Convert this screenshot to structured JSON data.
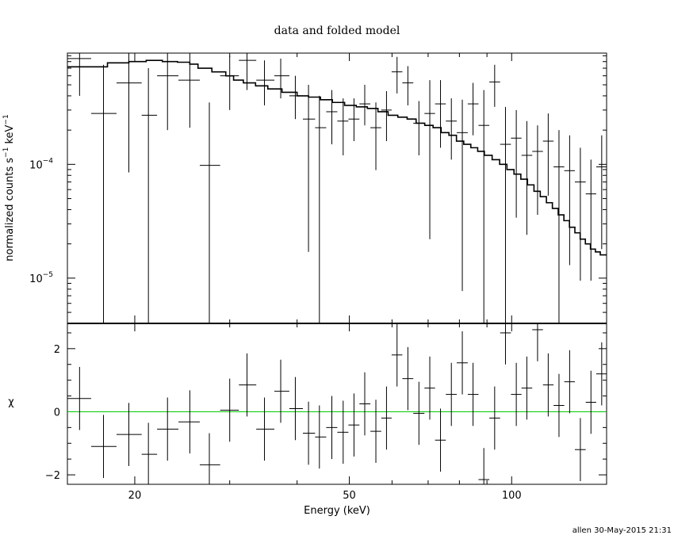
{
  "chart_data": [
    {
      "type": "line",
      "title": "data and folded model",
      "ylabel_main": "normalized counts s",
      "ylabel_sup1": "−1",
      "ylabel_unit": " keV",
      "ylabel_sup2": "−1",
      "yscale": "log",
      "xscale": "log",
      "xlim": [
        15,
        150
      ],
      "ylim": [
        4e-06,
        0.00095
      ],
      "y_ticks": [
        {
          "value": 0.0001,
          "base": "10",
          "exp": "−4"
        },
        {
          "value": 1e-05,
          "base": "10",
          "exp": "−5"
        }
      ],
      "data_points": [
        {
          "x": 15.8,
          "xerr": [
            15.0,
            16.6
          ],
          "y": 0.00085,
          "ylo": 0.0004,
          "yhi": 0.00095
        },
        {
          "x": 17.5,
          "xerr": [
            16.6,
            18.5
          ],
          "y": 0.00028,
          "ylo": 4e-06,
          "yhi": 0.00075
        },
        {
          "x": 19.5,
          "xerr": [
            18.5,
            20.6
          ],
          "y": 0.00052,
          "ylo": 8.5e-05,
          "yhi": 0.00095
        },
        {
          "x": 21.2,
          "xerr": [
            20.6,
            22.0
          ],
          "y": 0.00027,
          "ylo": 4e-06,
          "yhi": 0.0007
        },
        {
          "x": 23.0,
          "xerr": [
            22.0,
            24.1
          ],
          "y": 0.0006,
          "ylo": 0.0002,
          "yhi": 0.00095
        },
        {
          "x": 25.3,
          "xerr": [
            24.1,
            26.4
          ],
          "y": 0.00055,
          "ylo": 0.00021,
          "yhi": 0.00095
        },
        {
          "x": 27.5,
          "xerr": [
            26.4,
            28.8
          ],
          "y": 9.8e-05,
          "ylo": 4e-06,
          "yhi": 0.00035
        },
        {
          "x": 30.0,
          "xerr": [
            28.8,
            31.2
          ],
          "y": 0.0006,
          "ylo": 0.0003,
          "yhi": 0.0009
        },
        {
          "x": 32.3,
          "xerr": [
            31.2,
            33.6
          ],
          "y": 0.00082,
          "ylo": 0.00045,
          "yhi": 0.00095
        },
        {
          "x": 34.8,
          "xerr": [
            33.6,
            36.3
          ],
          "y": 0.00055,
          "ylo": 0.00033,
          "yhi": 0.00082
        },
        {
          "x": 37.3,
          "xerr": [
            36.3,
            38.7
          ],
          "y": 0.0006,
          "ylo": 0.00038,
          "yhi": 0.00085
        },
        {
          "x": 39.7,
          "xerr": [
            38.7,
            41.0
          ],
          "y": 0.0004,
          "ylo": 0.00025,
          "yhi": 0.0006
        },
        {
          "x": 42.0,
          "xerr": [
            41.0,
            43.2
          ],
          "y": 0.00025,
          "ylo": 1.7e-05,
          "yhi": 0.0005
        },
        {
          "x": 44.0,
          "xerr": [
            43.2,
            45.3
          ],
          "y": 0.00021,
          "ylo": 4e-06,
          "yhi": 0.0004
        },
        {
          "x": 46.4,
          "xerr": [
            45.3,
            47.5
          ],
          "y": 0.00029,
          "ylo": 0.00015,
          "yhi": 0.00045
        },
        {
          "x": 48.7,
          "xerr": [
            47.5,
            49.8
          ],
          "y": 0.00024,
          "ylo": 0.00012,
          "yhi": 0.00038
        },
        {
          "x": 51.0,
          "xerr": [
            49.8,
            52.2
          ],
          "y": 0.00025,
          "ylo": 0.00016,
          "yhi": 0.00038
        },
        {
          "x": 53.4,
          "xerr": [
            52.2,
            54.7
          ],
          "y": 0.00034,
          "ylo": 0.00022,
          "yhi": 0.0005
        },
        {
          "x": 56.0,
          "xerr": [
            54.7,
            57.3
          ],
          "y": 0.00021,
          "ylo": 8.9e-05,
          "yhi": 0.00035
        },
        {
          "x": 58.6,
          "xerr": [
            57.3,
            59.9
          ],
          "y": 0.0003,
          "ylo": 0.00016,
          "yhi": 0.00044
        },
        {
          "x": 61.3,
          "xerr": [
            59.9,
            62.7
          ],
          "y": 0.00065,
          "ylo": 0.00042,
          "yhi": 0.00088
        },
        {
          "x": 64.2,
          "xerr": [
            62.7,
            65.7
          ],
          "y": 0.00052,
          "ylo": 0.00033,
          "yhi": 0.00073
        },
        {
          "x": 67.3,
          "xerr": [
            65.7,
            68.9
          ],
          "y": 0.00023,
          "ylo": 0.00012,
          "yhi": 0.00036
        },
        {
          "x": 70.5,
          "xerr": [
            68.9,
            72.1
          ],
          "y": 0.00028,
          "ylo": 2.2e-05,
          "yhi": 0.00055
        },
        {
          "x": 73.8,
          "xerr": [
            72.1,
            75.5
          ],
          "y": 0.00034,
          "ylo": 0.00014,
          "yhi": 0.00055
        },
        {
          "x": 77.3,
          "xerr": [
            75.5,
            79.1
          ],
          "y": 0.00024,
          "ylo": 0.00011,
          "yhi": 0.00038
        },
        {
          "x": 81.0,
          "xerr": [
            79.1,
            82.9
          ],
          "y": 0.00019,
          "ylo": 7.7e-06,
          "yhi": 0.00037
        },
        {
          "x": 84.8,
          "xerr": [
            82.9,
            86.8
          ],
          "y": 0.00034,
          "ylo": 0.00018,
          "yhi": 0.00052
        },
        {
          "x": 88.8,
          "xerr": [
            86.8,
            90.9
          ],
          "y": 0.00022,
          "ylo": 4e-06,
          "yhi": 0.00045
        },
        {
          "x": 93.0,
          "xerr": [
            90.9,
            95.2
          ],
          "y": 0.00053,
          "ylo": 0.00032,
          "yhi": 0.00075
        },
        {
          "x": 97.4,
          "xerr": [
            95.2,
            99.7
          ],
          "y": 0.00015,
          "ylo": 4e-06,
          "yhi": 0.00032
        },
        {
          "x": 102.0,
          "xerr": [
            99.7,
            104.3
          ],
          "y": 0.00017,
          "ylo": 3.4e-05,
          "yhi": 0.0003
        },
        {
          "x": 106.7,
          "xerr": [
            104.3,
            109.2
          ],
          "y": 0.00012,
          "ylo": 2.4e-05,
          "yhi": 0.00024
        },
        {
          "x": 111.7,
          "xerr": [
            109.2,
            114.3
          ],
          "y": 0.00013,
          "ylo": 3.6e-05,
          "yhi": 0.00022
        },
        {
          "x": 116.9,
          "xerr": [
            114.3,
            119.6
          ],
          "y": 0.00016,
          "ylo": 5.3e-05,
          "yhi": 0.00028
        },
        {
          "x": 122.4,
          "xerr": [
            119.6,
            125.2
          ],
          "y": 9.5e-05,
          "ylo": 4e-06,
          "yhi": 0.0002
        },
        {
          "x": 128.1,
          "xerr": [
            125.2,
            131.0
          ],
          "y": 8.8e-05,
          "ylo": 1.3e-05,
          "yhi": 0.00018
        },
        {
          "x": 134.1,
          "xerr": [
            131.0,
            137.2
          ],
          "y": 7e-05,
          "ylo": 9.5e-06,
          "yhi": 0.00014
        },
        {
          "x": 140.3,
          "xerr": [
            137.2,
            143.5
          ],
          "y": 5.5e-05,
          "ylo": 9.5e-06,
          "yhi": 0.00011
        },
        {
          "x": 146.9,
          "xerr": [
            143.5,
            150.0
          ],
          "y": 9.5e-05,
          "ylo": 1.8e-05,
          "yhi": 0.00018
        }
      ],
      "model_step": [
        [
          15.0,
          0.00072
        ],
        [
          16.6,
          0.00072
        ],
        [
          17.8,
          0.00078
        ],
        [
          19.5,
          0.0008
        ],
        [
          21.0,
          0.00082
        ],
        [
          22.5,
          0.0008
        ],
        [
          24.0,
          0.00079
        ],
        [
          25.3,
          0.00076
        ],
        [
          26.2,
          0.0007
        ],
        [
          27.8,
          0.00065
        ],
        [
          29.5,
          0.0006
        ],
        [
          30.5,
          0.00055
        ],
        [
          31.8,
          0.00052
        ],
        [
          33.5,
          0.00049
        ],
        [
          35.3,
          0.00046
        ],
        [
          37.5,
          0.00043
        ],
        [
          40.0,
          0.0004
        ],
        [
          42.0,
          0.00039
        ],
        [
          44.2,
          0.00037
        ],
        [
          46.5,
          0.00035
        ],
        [
          49.0,
          0.00033
        ],
        [
          51.5,
          0.00032
        ],
        [
          54.0,
          0.00031
        ],
        [
          56.5,
          0.00029
        ],
        [
          59.0,
          0.00027
        ],
        [
          61.5,
          0.00026
        ],
        [
          64.0,
          0.00025
        ],
        [
          66.5,
          0.00023
        ],
        [
          69.0,
          0.00022
        ],
        [
          71.5,
          0.00021
        ],
        [
          74.0,
          0.00019
        ],
        [
          76.5,
          0.00018
        ],
        [
          79.0,
          0.00016
        ],
        [
          81.5,
          0.00015
        ],
        [
          84.0,
          0.00014
        ],
        [
          86.5,
          0.00013
        ],
        [
          89.0,
          0.00012
        ],
        [
          92.0,
          0.00011
        ],
        [
          95.0,
          0.0001
        ],
        [
          98.0,
          9e-05
        ],
        [
          101.0,
          8.2e-05
        ],
        [
          104.0,
          7.4e-05
        ],
        [
          107.0,
          6.6e-05
        ],
        [
          110.0,
          5.8e-05
        ],
        [
          113.0,
          5.2e-05
        ],
        [
          116.0,
          4.6e-05
        ],
        [
          119.0,
          4.1e-05
        ],
        [
          122.0,
          3.6e-05
        ],
        [
          125.0,
          3.2e-05
        ],
        [
          128.0,
          2.8e-05
        ],
        [
          131.0,
          2.5e-05
        ],
        [
          134.0,
          2.2e-05
        ],
        [
          137.0,
          2e-05
        ],
        [
          140.0,
          1.8e-05
        ],
        [
          143.0,
          1.7e-05
        ],
        [
          146.0,
          1.6e-05
        ],
        [
          150.0,
          1.6e-05
        ]
      ]
    },
    {
      "type": "scatter",
      "xlabel": "Energy (keV)",
      "ylabel": "χ",
      "xscale": "log",
      "xlim": [
        15,
        150
      ],
      "ylim": [
        -2.3,
        2.8
      ],
      "x_ticks": [
        {
          "value": 20,
          "label": "20"
        },
        {
          "value": 50,
          "label": "50"
        },
        {
          "value": 100,
          "label": "100"
        }
      ],
      "y_ticks": [
        {
          "value": 2,
          "label": "2"
        },
        {
          "value": 0,
          "label": "0"
        },
        {
          "value": -2,
          "label": "−2"
        }
      ],
      "zero_line_color": "#00cc00",
      "residuals": [
        {
          "x": 15.8,
          "xerr": [
            15.0,
            16.6
          ],
          "y": 0.42
        },
        {
          "x": 17.5,
          "xerr": [
            16.6,
            18.5
          ],
          "y": -1.1
        },
        {
          "x": 19.5,
          "xerr": [
            18.5,
            20.6
          ],
          "y": -0.72
        },
        {
          "x": 21.2,
          "xerr": [
            20.6,
            22.0
          ],
          "y": -1.35
        },
        {
          "x": 23.0,
          "xerr": [
            22.0,
            24.1
          ],
          "y": -0.55
        },
        {
          "x": 25.3,
          "xerr": [
            24.1,
            26.4
          ],
          "y": -0.32
        },
        {
          "x": 27.5,
          "xerr": [
            26.4,
            28.8
          ],
          "y": -1.68
        },
        {
          "x": 30.0,
          "xerr": [
            28.8,
            31.2
          ],
          "y": 0.05
        },
        {
          "x": 32.3,
          "xerr": [
            31.2,
            33.6
          ],
          "y": 0.85
        },
        {
          "x": 34.8,
          "xerr": [
            33.6,
            36.3
          ],
          "y": -0.55
        },
        {
          "x": 37.3,
          "xerr": [
            36.3,
            38.7
          ],
          "y": 0.65
        },
        {
          "x": 39.7,
          "xerr": [
            38.7,
            41.0
          ],
          "y": 0.1
        },
        {
          "x": 42.0,
          "xerr": [
            41.0,
            43.2
          ],
          "y": -0.68
        },
        {
          "x": 44.0,
          "xerr": [
            43.2,
            45.3
          ],
          "y": -0.8
        },
        {
          "x": 46.4,
          "xerr": [
            45.3,
            47.5
          ],
          "y": -0.5
        },
        {
          "x": 48.7,
          "xerr": [
            47.5,
            49.8
          ],
          "y": -0.65
        },
        {
          "x": 51.0,
          "xerr": [
            49.8,
            52.2
          ],
          "y": -0.42
        },
        {
          "x": 53.4,
          "xerr": [
            52.2,
            54.7
          ],
          "y": 0.25
        },
        {
          "x": 56.0,
          "xerr": [
            54.7,
            57.3
          ],
          "y": -0.62
        },
        {
          "x": 58.6,
          "xerr": [
            57.3,
            59.9
          ],
          "y": -0.2
        },
        {
          "x": 61.3,
          "xerr": [
            59.9,
            62.7
          ],
          "y": 1.8
        },
        {
          "x": 64.2,
          "xerr": [
            62.7,
            65.7
          ],
          "y": 1.05
        },
        {
          "x": 67.3,
          "xerr": [
            65.7,
            68.9
          ],
          "y": -0.05
        },
        {
          "x": 70.5,
          "xerr": [
            68.9,
            72.1
          ],
          "y": 0.75
        },
        {
          "x": 73.8,
          "xerr": [
            72.1,
            75.5
          ],
          "y": -0.9
        },
        {
          "x": 77.3,
          "xerr": [
            75.5,
            79.1
          ],
          "y": 0.55
        },
        {
          "x": 81.0,
          "xerr": [
            79.1,
            82.9
          ],
          "y": 1.55
        },
        {
          "x": 84.8,
          "xerr": [
            82.9,
            86.8
          ],
          "y": 0.55
        },
        {
          "x": 88.8,
          "xerr": [
            86.8,
            90.9
          ],
          "y": -2.15
        },
        {
          "x": 93.0,
          "xerr": [
            90.9,
            95.2
          ],
          "y": -0.2
        },
        {
          "x": 97.4,
          "xerr": [
            95.2,
            99.7
          ],
          "y": 2.5
        },
        {
          "x": 102.0,
          "xerr": [
            99.7,
            104.3
          ],
          "y": 0.55
        },
        {
          "x": 106.7,
          "xerr": [
            104.3,
            109.2
          ],
          "y": 0.75
        },
        {
          "x": 111.7,
          "xerr": [
            109.2,
            114.3
          ],
          "y": 2.6
        },
        {
          "x": 116.9,
          "xerr": [
            114.3,
            119.6
          ],
          "y": 0.85
        },
        {
          "x": 122.4,
          "xerr": [
            119.6,
            125.2
          ],
          "y": 0.2
        },
        {
          "x": 128.1,
          "xerr": [
            125.2,
            131.0
          ],
          "y": 0.95
        },
        {
          "x": 134.1,
          "xerr": [
            131.0,
            137.2
          ],
          "y": -1.2
        },
        {
          "x": 140.3,
          "xerr": [
            137.2,
            143.5
          ],
          "y": 0.3
        },
        {
          "x": 146.9,
          "xerr": [
            143.5,
            150.0
          ],
          "y": 1.2
        }
      ]
    }
  ],
  "footer": {
    "stamp": "allen 30-May-2015 21:31"
  }
}
